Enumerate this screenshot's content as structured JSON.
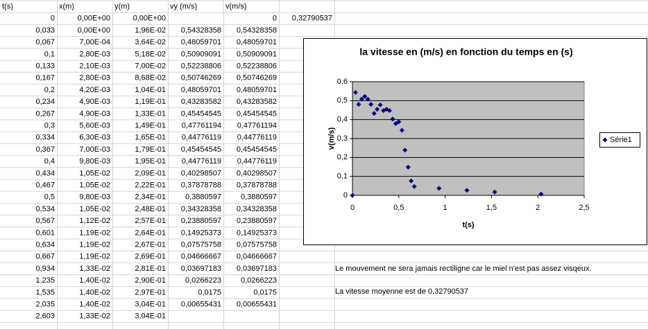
{
  "table": {
    "header": [
      "t(s)",
      "x(m)",
      "y(m)",
      "vy (m/s)",
      "v(m/s)"
    ],
    "rows": [
      [
        "0",
        "0,00E+00",
        "0,00E+00",
        null,
        "0"
      ],
      [
        "0,033",
        "0,00E+00",
        "1,96E-02",
        "0,54328358",
        "0,54328358"
      ],
      [
        "0,067",
        "7,00E-04",
        "3,64E-02",
        "0,48059701",
        "0,48059701"
      ],
      [
        "0,1",
        "2,80E-03",
        "5,18E-02",
        "0,50909091",
        "0,50909091"
      ],
      [
        "0,133",
        "2,10E-03",
        "7,00E-02",
        "0,52238806",
        "0,52238806"
      ],
      [
        "0,167",
        "2,80E-03",
        "8,68E-02",
        "0,50746269",
        "0,50746269"
      ],
      [
        "0,2",
        "4,20E-03",
        "1,04E-01",
        "0,48059701",
        "0,48059701"
      ],
      [
        "0,234",
        "4,90E-03",
        "1,19E-01",
        "0,43283582",
        "0,43283582"
      ],
      [
        "0,267",
        "4,90E-03",
        "1,33E-01",
        "0,45454545",
        "0,45454545"
      ],
      [
        "0,3",
        "5,60E-03",
        "1,49E-01",
        "0,47761194",
        "0,47761194"
      ],
      [
        "0,334",
        "6,30E-03",
        "1,65E-01",
        "0,44776119",
        "0,44776119"
      ],
      [
        "0,367",
        "7,00E-03",
        "1,79E-01",
        "0,45454545",
        "0,45454545"
      ],
      [
        "0,4",
        "9,80E-03",
        "1,95E-01",
        "0,44776119",
        "0,44776119"
      ],
      [
        "0,434",
        "1,05E-02",
        "2,09E-01",
        "0,40298507",
        "0,40298507"
      ],
      [
        "0,467",
        "1,05E-02",
        "2,22E-01",
        "0,37878788",
        "0,37878788"
      ],
      [
        "0,5",
        "9,80E-03",
        "2,34E-01",
        "0,3880597",
        "0,3880597"
      ],
      [
        "0,534",
        "1,05E-02",
        "2,48E-01",
        "0,34328358",
        "0,34328358"
      ],
      [
        "0,567",
        "1,12E-02",
        "2,57E-01",
        "0,23880597",
        "0,23880597"
      ],
      [
        "0,601",
        "1,19E-02",
        "2,64E-01",
        "0,14925373",
        "0,14925373"
      ],
      [
        "0,634",
        "1,19E-02",
        "2,67E-01",
        "0,07575758",
        "0,07575758"
      ],
      [
        "0,667",
        "1,19E-02",
        "2,69E-01",
        "0,04666667",
        "0,04666667"
      ],
      [
        "0,934",
        "1,33E-02",
        "2,81E-01",
        "0,03697183",
        "0,03697183"
      ],
      [
        "1,235",
        "1,40E-02",
        "2,90E-01",
        "0,0266223",
        "0,0266223"
      ],
      [
        "1,535",
        "1,40E-02",
        "2,97E-01",
        "0,0175",
        "0,0175"
      ],
      [
        "2,035",
        "1,40E-02",
        "3,04E-01",
        "0,00655431",
        "0,00655431"
      ],
      [
        "2,603",
        "1,33E-02",
        "3,04E-01",
        null,
        null
      ]
    ],
    "mean_cell": "0,32790537"
  },
  "notes": [
    "Le mouvement ne sera jamais rectiligne car le miel n'est pas assez visqeux.",
    "La vitesse moyenne est de 0,32790537"
  ],
  "chart_data": {
    "type": "scatter",
    "title": "la vitesse en (m/s) en fonction du temps en (s)",
    "x_label": "t(s)",
    "y_label": "v(m/s)",
    "x": [
      0,
      0.033,
      0.067,
      0.1,
      0.133,
      0.167,
      0.2,
      0.234,
      0.267,
      0.3,
      0.334,
      0.367,
      0.4,
      0.434,
      0.467,
      0.5,
      0.534,
      0.567,
      0.601,
      0.634,
      0.667,
      0.934,
      1.235,
      1.535,
      2.035
    ],
    "series": [
      {
        "name": "Série1",
        "color": "#000080",
        "values": [
          0,
          0.54328358,
          0.48059701,
          0.50909091,
          0.52238806,
          0.50746269,
          0.48059701,
          0.43283582,
          0.45454545,
          0.47761194,
          0.44776119,
          0.45454545,
          0.44776119,
          0.40298507,
          0.37878788,
          0.3880597,
          0.34328358,
          0.23880597,
          0.14925373,
          0.07575758,
          0.04666667,
          0.03697183,
          0.0266223,
          0.0175,
          0.00655431
        ]
      }
    ],
    "xlim": [
      0,
      2.5
    ],
    "xticks": [
      0,
      {
        "value": 0.5,
        "label": "0,5"
      },
      1,
      {
        "value": 1.5,
        "label": "1,5"
      },
      2,
      {
        "value": 2.5,
        "label": "2,5"
      }
    ],
    "ylim": [
      0,
      0.6
    ],
    "yticks": [
      0,
      {
        "value": 0.1,
        "label": "0,1"
      },
      {
        "value": 0.2,
        "label": "0,2"
      },
      {
        "value": 0.3,
        "label": "0,3"
      },
      {
        "value": 0.4,
        "label": "0,4"
      },
      {
        "value": 0.5,
        "label": "0,5"
      },
      {
        "value": 0.6,
        "label": "0,6"
      }
    ],
    "grid": true,
    "legend": "right"
  }
}
